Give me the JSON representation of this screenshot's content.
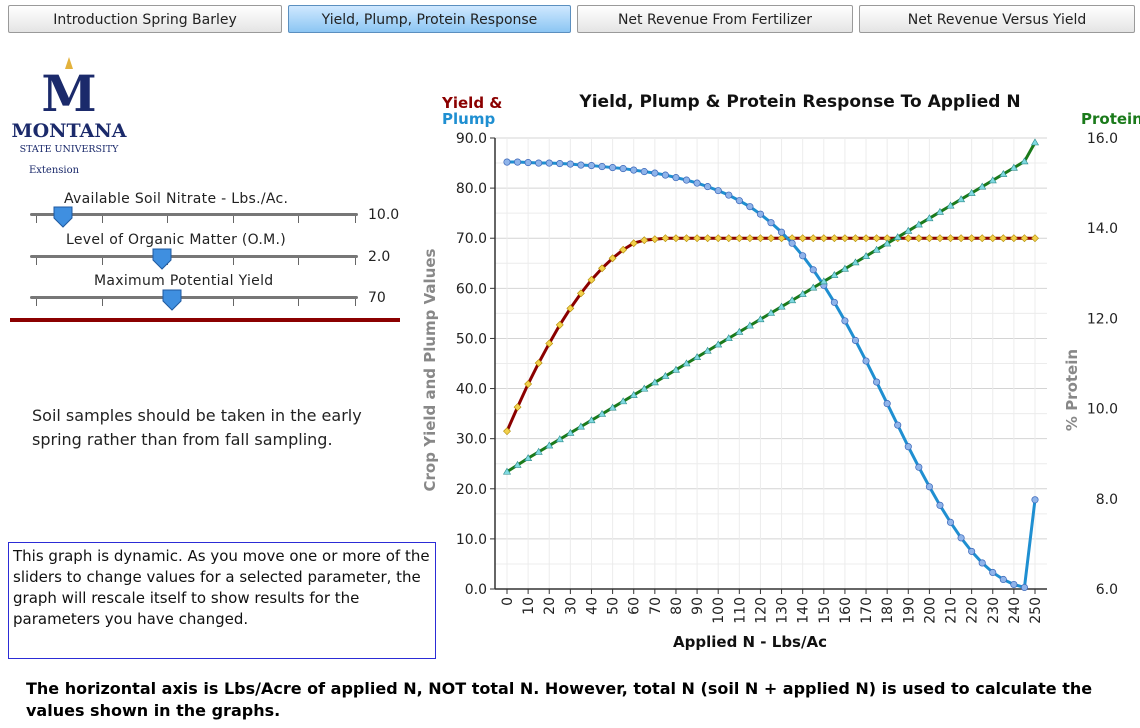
{
  "tabs": [
    {
      "label": "Introduction Spring Barley",
      "active": false
    },
    {
      "label": "Yield, Plump, Protein Response",
      "active": true
    },
    {
      "label": "Net Revenue From Fertilizer",
      "active": false
    },
    {
      "label": "Net Revenue Versus Yield",
      "active": false
    }
  ],
  "logo": {
    "letter": "M",
    "name": "MONTANA",
    "sub": "STATE UNIVERSITY",
    "ext": "Extension"
  },
  "sliders": [
    {
      "label": "Available Soil Nitrate - Lbs./Ac.",
      "value": "10.0",
      "fraction": 0.1
    },
    {
      "label": "Level of Organic Matter (O.M.)",
      "value": "2.0",
      "fraction": 0.4
    },
    {
      "label": "Maximum Potential Yield",
      "value": "70",
      "fraction": 0.43
    }
  ],
  "note": "Soil samples should be taken in the early spring rather than from fall sampling.",
  "info_box": "This graph is dynamic.  As you move one or more of the sliders to change values for a selected parameter, the graph will rescale itself to show results for the parameters you have changed.",
  "footer": "The horizontal axis is Lbs/Acre of applied N, NOT total N. However, total N (soil N + applied N) is used to calculate the values shown in the graphs.",
  "colors": {
    "yield": "#8b0000",
    "plump": "#1f8fd1",
    "protein": "#1a7a1a",
    "accent_tab": "#8cc6f3",
    "divider": "#8b0000"
  },
  "chart_data": {
    "type": "line",
    "title": "Yield, Plump & Protein Response To Applied N",
    "left_label_top": "Yield &",
    "left_label_bottom": "Plump",
    "right_label_top": "Protein",
    "xlabel": "Applied N - Lbs/Ac",
    "ylabel": "Crop Yield and Plump Values",
    "y2label": "% Protein",
    "x_ticks": [
      "0",
      "10",
      "20",
      "30",
      "40",
      "50",
      "60",
      "70",
      "80",
      "90",
      "100",
      "110",
      "120",
      "130",
      "140",
      "150",
      "160",
      "170",
      "180",
      "190",
      "200",
      "210",
      "220",
      "230",
      "240",
      "250"
    ],
    "ylim": [
      0,
      90
    ],
    "y_ticks": [
      "0.0",
      "10.0",
      "20.0",
      "30.0",
      "40.0",
      "50.0",
      "60.0",
      "70.0",
      "80.0",
      "90.0"
    ],
    "y2lim": [
      6,
      16
    ],
    "y2_ticks": [
      "6.0",
      "8.0",
      "10.0",
      "12.0",
      "14.0",
      "16.0"
    ],
    "x": [
      0,
      5,
      10,
      15,
      20,
      25,
      30,
      35,
      40,
      45,
      50,
      55,
      60,
      65,
      70,
      75,
      80,
      85,
      90,
      95,
      100,
      105,
      110,
      115,
      120,
      125,
      130,
      135,
      140,
      145,
      150,
      155,
      160,
      165,
      170,
      175,
      180,
      185,
      190,
      195,
      200,
      205,
      210,
      215,
      220,
      225,
      230,
      235,
      240,
      245,
      250
    ],
    "series": [
      {
        "name": "Yield & Plump",
        "axis": "left",
        "values": [
          31.5,
          36.3,
          40.9,
          45.1,
          49.0,
          52.7,
          56.0,
          59.0,
          61.7,
          64.0,
          66.0,
          67.7,
          69.0,
          69.6,
          69.8,
          70,
          70,
          70,
          70,
          70,
          70,
          70,
          70,
          70,
          70,
          70,
          70,
          70,
          70,
          70,
          70,
          70,
          70,
          70,
          70,
          70,
          70,
          70,
          70,
          70,
          70,
          70,
          70,
          70,
          70,
          70,
          70,
          70,
          70,
          70,
          70
        ]
      },
      {
        "name": "Plump",
        "axis": "left",
        "values": [
          85.2,
          85.2,
          85.1,
          85.0,
          85.0,
          84.9,
          84.8,
          84.6,
          84.5,
          84.3,
          84.1,
          83.9,
          83.6,
          83.3,
          83.0,
          82.6,
          82.1,
          81.6,
          81.0,
          80.3,
          79.5,
          78.6,
          77.5,
          76.3,
          74.8,
          73.1,
          71.2,
          69.0,
          66.5,
          63.7,
          60.6,
          57.2,
          53.5,
          49.6,
          45.5,
          41.3,
          37.0,
          32.7,
          28.4,
          24.3,
          20.4,
          16.7,
          13.3,
          10.2,
          7.5,
          5.2,
          3.3,
          1.9,
          0.9,
          0.3,
          17.8
        ]
      },
      {
        "name": "Protein",
        "axis": "right",
        "values": [
          8.6,
          8.75,
          8.9,
          9.04,
          9.18,
          9.32,
          9.46,
          9.6,
          9.74,
          9.88,
          10.02,
          10.16,
          10.3,
          10.44,
          10.58,
          10.72,
          10.86,
          11.0,
          11.14,
          11.28,
          11.42,
          11.56,
          11.7,
          11.84,
          11.98,
          12.12,
          12.26,
          12.4,
          12.54,
          12.68,
          12.82,
          12.96,
          13.1,
          13.24,
          13.38,
          13.52,
          13.66,
          13.8,
          13.94,
          14.08,
          14.22,
          14.36,
          14.5,
          14.64,
          14.78,
          14.92,
          15.06,
          15.2,
          15.34,
          15.48,
          15.9
        ]
      }
    ],
    "grid": true
  }
}
